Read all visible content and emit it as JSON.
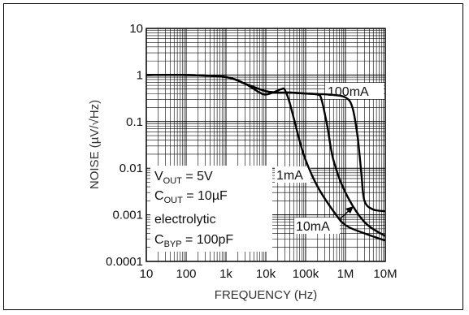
{
  "chart_data": {
    "type": "line",
    "xlabel": "FREQUENCY (Hz)",
    "ylabel": "NOISE (µV/√Hz)",
    "x_scale": "log",
    "y_scale": "log",
    "xlim": [
      10,
      10000000
    ],
    "ylim": [
      0.0001,
      10
    ],
    "grid": true,
    "x_ticks": [
      "10",
      "100",
      "1k",
      "10k",
      "100k",
      "1M",
      "10M"
    ],
    "x_tick_values": [
      10,
      100,
      1000,
      10000,
      100000,
      1000000,
      10000000
    ],
    "y_ticks": [
      "10",
      "1",
      "0.1",
      "0.01",
      "0.001",
      "0.0001"
    ],
    "y_tick_values": [
      10,
      1,
      0.1,
      0.01,
      0.001,
      0.0001
    ],
    "series": [
      {
        "name": "100mA",
        "x": [
          10,
          100,
          1000,
          3000,
          10000,
          20000,
          40000,
          100000,
          400000,
          1000000,
          1500000,
          2000000,
          2500000,
          3000000,
          5000000,
          10000000
        ],
        "y": [
          1,
          1,
          0.9,
          0.65,
          0.45,
          0.42,
          0.42,
          0.4,
          0.38,
          0.33,
          0.2,
          0.05,
          0.008,
          0.002,
          0.0013,
          0.0012
        ]
      },
      {
        "name": "1mA",
        "x": [
          10,
          100,
          1000,
          3000,
          7000,
          10000,
          15000,
          25000,
          30000,
          40000,
          70000,
          100000,
          200000,
          500000,
          1000000,
          3000000,
          10000000
        ],
        "y": [
          1,
          1,
          0.9,
          0.65,
          0.42,
          0.38,
          0.42,
          0.5,
          0.48,
          0.25,
          0.04,
          0.015,
          0.004,
          0.0012,
          0.0006,
          0.0004,
          0.00028
        ]
      },
      {
        "name": "10mA",
        "x": [
          10,
          100,
          1000,
          3000,
          10000,
          20000,
          40000,
          100000,
          200000,
          250000,
          350000,
          500000,
          1000000,
          3000000,
          10000000
        ],
        "y": [
          1,
          1,
          0.9,
          0.65,
          0.45,
          0.42,
          0.42,
          0.4,
          0.38,
          0.3,
          0.08,
          0.015,
          0.003,
          0.0007,
          0.00035
        ]
      }
    ],
    "annotations": {
      "label_100mA": "100mA",
      "label_1mA": "1mA",
      "label_10mA": "10mA",
      "cond_vout_main": "V",
      "cond_vout_sub": "OUT",
      "cond_vout_rest": " = 5V",
      "cond_cout_main": "C",
      "cond_cout_sub": "OUT",
      "cond_cout_rest": " = 10µF",
      "cond_electrolytic": "electrolytic",
      "cond_cbyp_main": "C",
      "cond_cbyp_sub": "BYP",
      "cond_cbyp_rest": " = 100pF"
    }
  }
}
